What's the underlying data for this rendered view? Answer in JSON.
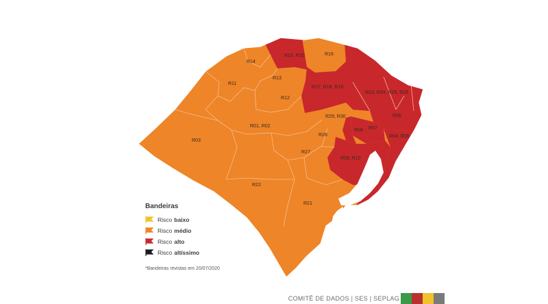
{
  "colors": {
    "orange": "#EE8528",
    "red": "#C8272C",
    "yellow": "#F2C12E",
    "black": "#1B1B1B",
    "border": "#F7C49A",
    "water": "#FFFFFF"
  },
  "regions": [
    {
      "id": "R14",
      "label": "R14",
      "color": "orange"
    },
    {
      "id": "R11",
      "label": "R11",
      "color": "orange"
    },
    {
      "id": "R13",
      "label": "R13",
      "color": "orange"
    },
    {
      "id": "R12",
      "label": "R12",
      "color": "orange"
    },
    {
      "id": "R15R20",
      "label": "R15, R20",
      "color": "red"
    },
    {
      "id": "R16",
      "label": "R16",
      "color": "orange"
    },
    {
      "id": "R17R18R19",
      "label": "R17, R18, R19",
      "color": "red"
    },
    {
      "id": "R23R24R25R26",
      "label": "R23, R24, R25, R26",
      "color": "red"
    },
    {
      "id": "R06",
      "label": "R06",
      "color": "red"
    },
    {
      "id": "R29R30",
      "label": "R29, R30",
      "color": "orange"
    },
    {
      "id": "R08",
      "label": "R08",
      "color": "red"
    },
    {
      "id": "R07",
      "label": "R07",
      "color": "red"
    },
    {
      "id": "R04R05",
      "label": "R04, R05",
      "color": "red"
    },
    {
      "id": "R01R02",
      "label": "R01, R02",
      "color": "orange"
    },
    {
      "id": "R03",
      "label": "R03",
      "color": "orange"
    },
    {
      "id": "R28",
      "label": "R28",
      "color": "orange"
    },
    {
      "id": "R27",
      "label": "R27",
      "color": "orange"
    },
    {
      "id": "R09R10",
      "label": "R09, R10",
      "color": "red"
    },
    {
      "id": "R22",
      "label": "R22",
      "color": "orange"
    },
    {
      "id": "R21",
      "label": "R21",
      "color": "orange"
    }
  ],
  "legend": {
    "title": "Bandeiras",
    "items": [
      {
        "prefix": "Risco",
        "strong": "baixo",
        "color": "yellow",
        "flag": "yellow-flag-icon"
      },
      {
        "prefix": "Risco",
        "strong": "médio",
        "color": "orange",
        "flag": "orange-flag-icon"
      },
      {
        "prefix": "Risco",
        "strong": "alto",
        "color": "red",
        "flag": "red-flag-icon"
      },
      {
        "prefix": "Risco",
        "strong": "altíssimo",
        "color": "black",
        "flag": "black-flag-icon"
      }
    ],
    "note": "*Bandeiras revistas em 20/07/2020"
  },
  "footer": {
    "text": "COMITÊ DE DADOS |  SES  |  SEPLAG",
    "swatches": [
      "#3A9A4A",
      "#B8312F",
      "#F2C12E",
      "#7A7A7A"
    ]
  }
}
